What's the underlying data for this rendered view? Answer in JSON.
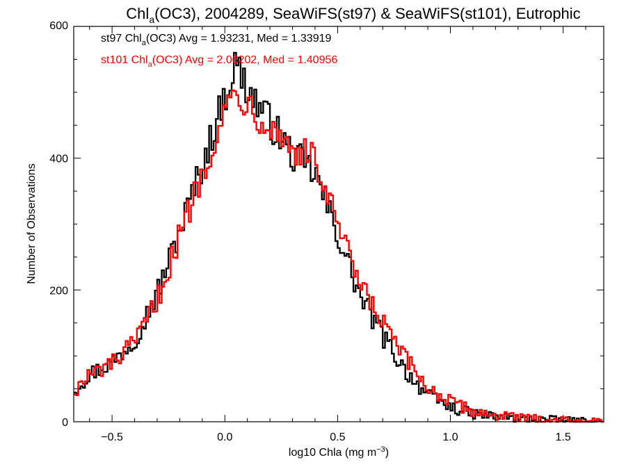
{
  "chart_data": {
    "type": "histogram",
    "title": {
      "prefix": "Chl",
      "sub": "a",
      "suffix": "(OC3), 2004289, SeaWiFS(st97) & SeaWiFS(st101), Eutrophic"
    },
    "xlabel": {
      "prefix": "log10 Chla (mg m",
      "sup": "−3",
      "suffix": ")"
    },
    "ylabel": "Number of Observations",
    "xlim": [
      -0.67,
      1.68
    ],
    "ylim": [
      0,
      600
    ],
    "xticks": [
      {
        "v": -0.5,
        "label": "−0.5"
      },
      {
        "v": 0.0,
        "label": "0.0"
      },
      {
        "v": 0.5,
        "label": "0.5"
      },
      {
        "v": 1.0,
        "label": "1.0"
      },
      {
        "v": 1.5,
        "label": "1.5"
      }
    ],
    "yticks": [
      {
        "v": 0,
        "label": "0"
      },
      {
        "v": 200,
        "label": "200"
      },
      {
        "v": 400,
        "label": "400"
      },
      {
        "v": 600,
        "label": "600"
      }
    ],
    "bin_width": 0.01,
    "series": [
      {
        "name": "st97",
        "color": "#000000",
        "legend": {
          "prefix": "st97 Chl",
          "sub": "a",
          "suffix": "(OC3) Avg = 1.93231, Med = 1.33919"
        },
        "curve": [
          [
            -0.67,
            48
          ],
          [
            -0.6,
            72
          ],
          [
            -0.5,
            90
          ],
          [
            -0.4,
            125
          ],
          [
            -0.3,
            195
          ],
          [
            -0.2,
            290
          ],
          [
            -0.1,
            390
          ],
          [
            0.0,
            495
          ],
          [
            0.05,
            545
          ],
          [
            0.1,
            505
          ],
          [
            0.2,
            455
          ],
          [
            0.3,
            405
          ],
          [
            0.4,
            378
          ],
          [
            0.45,
            330
          ],
          [
            0.5,
            285
          ],
          [
            0.55,
            238
          ],
          [
            0.6,
            190
          ],
          [
            0.7,
            130
          ],
          [
            0.8,
            78
          ],
          [
            0.9,
            40
          ],
          [
            1.0,
            22
          ],
          [
            1.1,
            12
          ],
          [
            1.2,
            8
          ],
          [
            1.3,
            5
          ],
          [
            1.4,
            4
          ],
          [
            1.5,
            2
          ],
          [
            1.6,
            1
          ],
          [
            1.68,
            0
          ]
        ]
      },
      {
        "name": "st101",
        "color": "#ff0000",
        "legend": {
          "prefix": "st101 Chl",
          "sub": "a",
          "suffix": "(OC3) Avg = 2.06202, Med = 1.40956"
        },
        "curve": [
          [
            -0.67,
            45
          ],
          [
            -0.6,
            70
          ],
          [
            -0.5,
            88
          ],
          [
            -0.4,
            118
          ],
          [
            -0.3,
            185
          ],
          [
            -0.2,
            282
          ],
          [
            -0.1,
            380
          ],
          [
            0.0,
            470
          ],
          [
            0.05,
            505
          ],
          [
            0.1,
            485
          ],
          [
            0.2,
            450
          ],
          [
            0.3,
            415
          ],
          [
            0.4,
            398
          ],
          [
            0.45,
            345
          ],
          [
            0.5,
            300
          ],
          [
            0.55,
            250
          ],
          [
            0.6,
            205
          ],
          [
            0.7,
            150
          ],
          [
            0.8,
            95
          ],
          [
            0.9,
            52
          ],
          [
            1.0,
            30
          ],
          [
            1.1,
            16
          ],
          [
            1.2,
            10
          ],
          [
            1.3,
            6
          ],
          [
            1.4,
            4
          ],
          [
            1.5,
            3
          ],
          [
            1.6,
            1
          ],
          [
            1.68,
            0
          ]
        ]
      }
    ]
  }
}
